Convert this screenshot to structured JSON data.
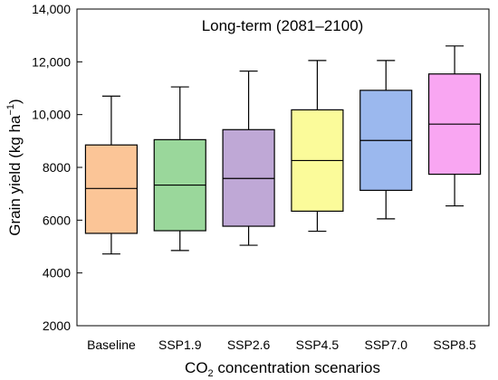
{
  "chart_data": {
    "type": "box",
    "title": "Long-term (2081–2100)",
    "xlabel": "CO2 concentration scenarios",
    "xlabel_main": "CO",
    "xlabel_sub": "2",
    "xlabel_rest": " concentration scenarios",
    "ylabel": "Grain yield (kg ha⁻¹)",
    "ylabel_main": "Grain yield (kg ha",
    "ylabel_sup": "−1",
    "ylabel_end": ")",
    "ylim": [
      2000,
      14000
    ],
    "yticks": [
      2000,
      4000,
      6000,
      8000,
      10000,
      12000,
      14000
    ],
    "ytick_labels": [
      "2000",
      "4000",
      "6000",
      "8000",
      "10,000",
      "12,000",
      "14,000"
    ],
    "grid": false,
    "categories": [
      "Baseline",
      "SSP1.9",
      "SSP2.6",
      "SSP4.5",
      "SSP7.0",
      "SSP8.5"
    ],
    "boxes": [
      {
        "category": "Baseline",
        "whisker_low": 4720,
        "q1": 5500,
        "median": 7200,
        "q3": 8850,
        "whisker_high": 10700,
        "color": "#FBC597"
      },
      {
        "category": "SSP1.9",
        "whisker_low": 4850,
        "q1": 5600,
        "median": 7330,
        "q3": 9050,
        "whisker_high": 11050,
        "color": "#9AD79B"
      },
      {
        "category": "SSP2.6",
        "whisker_low": 5050,
        "q1": 5770,
        "median": 7580,
        "q3": 9430,
        "whisker_high": 11650,
        "color": "#BFA8D6"
      },
      {
        "category": "SSP4.5",
        "whisker_low": 5580,
        "q1": 6340,
        "median": 8260,
        "q3": 10180,
        "whisker_high": 12050,
        "color": "#FBFB9A"
      },
      {
        "category": "SSP7.0",
        "whisker_low": 6050,
        "q1": 7130,
        "median": 9020,
        "q3": 10920,
        "whisker_high": 12050,
        "color": "#9BB8EE"
      },
      {
        "category": "SSP8.5",
        "whisker_low": 6540,
        "q1": 7740,
        "median": 9640,
        "q3": 11540,
        "whisker_high": 12600,
        "color": "#F9A6F2"
      }
    ]
  }
}
